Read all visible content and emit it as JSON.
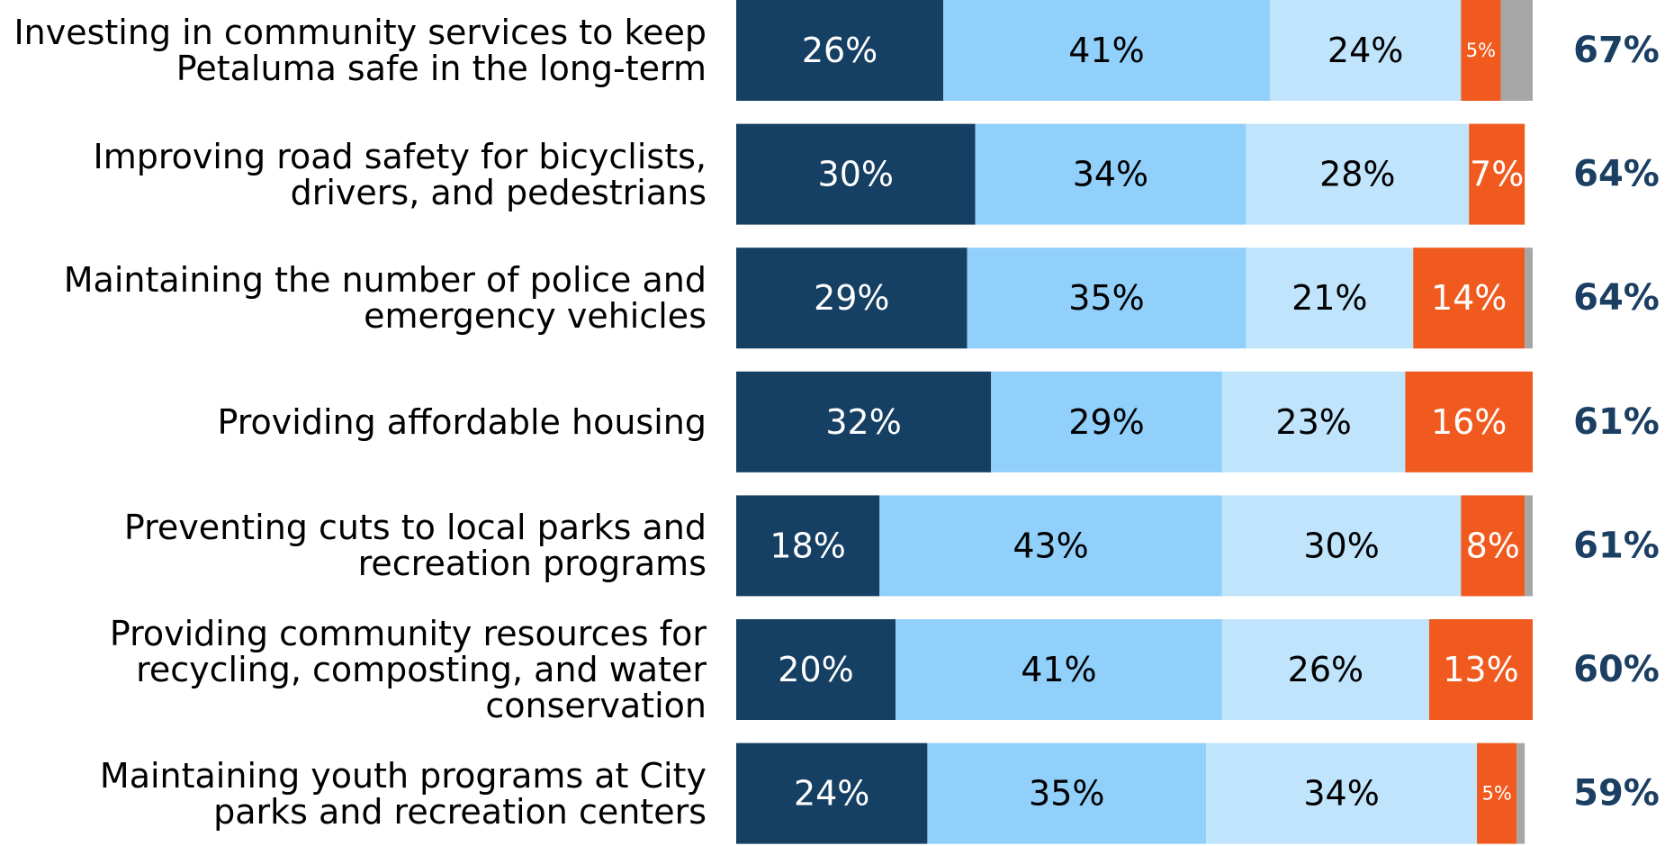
{
  "chart_data": {
    "type": "stacked-bar-horizontal",
    "categories": [
      "Investing in community services to keep\nPetaluma safe in the long-term",
      "Improving road safety for bicyclists,\ndrivers, and pedestrians",
      "Maintaining the number of police and\nemergency vehicles",
      "Providing affordable housing",
      "Preventing cuts to local parks and\nrecreation programs",
      "Providing community resources for\nrecycling, composting, and water\nconservation",
      "Maintaining youth programs at City\nparks and recreation centers"
    ],
    "xlim": [
      0,
      100
    ],
    "series": [
      {
        "color": "#153f63",
        "label_color": "#ffffff",
        "values": [
          26,
          30,
          29,
          32,
          18,
          20,
          24
        ],
        "value_labels": [
          "26%",
          "30%",
          "29%",
          "32%",
          "18%",
          "20%",
          "24%"
        ]
      },
      {
        "color": "#90d0fb",
        "label_color": "#000000",
        "values": [
          41,
          34,
          35,
          29,
          43,
          41,
          35
        ],
        "value_labels": [
          "41%",
          "34%",
          "35%",
          "29%",
          "43%",
          "41%",
          "35%"
        ]
      },
      {
        "color": "#bfe4fc",
        "label_color": "#000000",
        "values": [
          24,
          28,
          21,
          23,
          30,
          26,
          34
        ],
        "value_labels": [
          "24%",
          "28%",
          "21%",
          "23%",
          "30%",
          "26%",
          "34%"
        ]
      },
      {
        "color": "#f05a1e",
        "label_color": "#ffffff",
        "values": [
          5,
          7,
          14,
          16,
          8,
          13,
          5
        ],
        "value_labels": [
          "5%",
          "7%",
          "14%",
          "16%",
          "8%",
          "13%",
          "5%"
        ]
      },
      {
        "color": "#a6a6a6",
        "values": [
          4,
          null,
          1,
          null,
          1,
          null,
          1
        ]
      }
    ],
    "totals": {
      "color": "#1b3f62",
      "values": [
        67,
        64,
        64,
        61,
        61,
        60,
        59
      ],
      "value_labels": [
        "67%",
        "64%",
        "64%",
        "61%",
        "61%",
        "60%",
        "59%"
      ]
    }
  }
}
